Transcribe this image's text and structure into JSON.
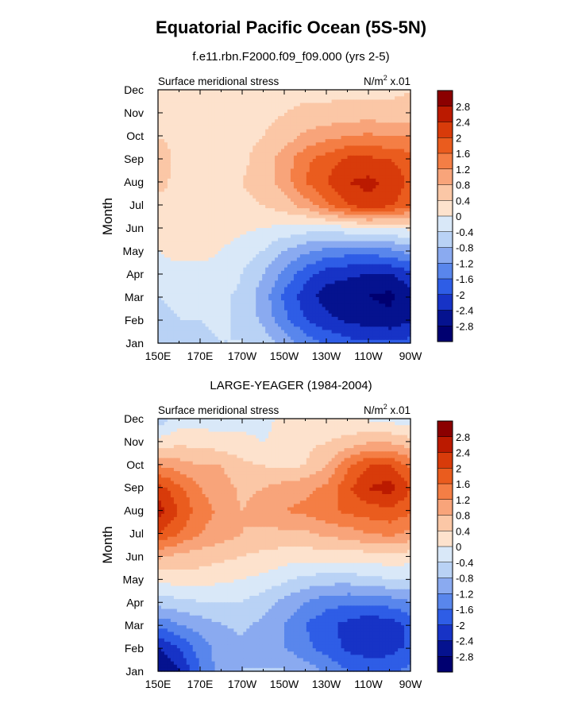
{
  "title": "Equatorial Pacific Ocean (5S-5N)",
  "colorbar": {
    "labels": [
      "2.8",
      "2.4",
      "2",
      "1.6",
      "1.2",
      "0.8",
      "0.4",
      "0",
      "-0.4",
      "-0.8",
      "-1.2",
      "-1.6",
      "-2",
      "-2.4",
      "-2.8"
    ],
    "colors": [
      "#8b0000",
      "#bb1a00",
      "#d83b0a",
      "#ea5c1e",
      "#f47e45",
      "#f8a47a",
      "#fbc7a6",
      "#fde2cd",
      "#d9e8f8",
      "#b9d2f5",
      "#8aaaf0",
      "#5986ec",
      "#2e5de6",
      "#1733c6",
      "#05128f",
      "#000070"
    ]
  },
  "chart_data": [
    {
      "type": "heatmap",
      "subtitle": "f.e11.rbn.F2000.f09_f09.000 (yrs 2-5)",
      "left_label": "Surface meridional stress",
      "right_label": "N/m² x.01",
      "ylabel": "Month",
      "x_ticks": [
        "150E",
        "170E",
        "170W",
        "150W",
        "130W",
        "110W",
        "90W"
      ],
      "x_tick_lon": [
        150,
        170,
        190,
        210,
        230,
        250,
        270
      ],
      "y_ticks": [
        "Jan",
        "Feb",
        "Mar",
        "Apr",
        "May",
        "Jun",
        "Jul",
        "Aug",
        "Sep",
        "Oct",
        "Nov",
        "Dec"
      ],
      "xlim": [
        150,
        270
      ],
      "grid": false,
      "x": [
        150,
        160,
        170,
        180,
        190,
        200,
        210,
        220,
        230,
        240,
        250,
        260,
        270
      ],
      "z": [
        [
          -0.6,
          -0.6,
          -0.5,
          -0.4,
          -0.4,
          -0.6,
          -1.0,
          -1.4,
          -1.7,
          -1.9,
          -2.0,
          -2.0,
          -1.9
        ],
        [
          -0.5,
          -0.4,
          -0.4,
          -0.3,
          -0.5,
          -0.9,
          -1.5,
          -2.0,
          -2.3,
          -2.5,
          -2.6,
          -2.7,
          -2.5
        ],
        [
          -0.4,
          -0.3,
          -0.3,
          -0.3,
          -0.5,
          -1.0,
          -1.7,
          -2.2,
          -2.6,
          -2.7,
          -2.8,
          -2.9,
          -2.6
        ],
        [
          -0.1,
          -0.1,
          -0.1,
          -0.1,
          -0.4,
          -0.8,
          -1.3,
          -1.8,
          -2.2,
          -2.3,
          -2.4,
          -2.4,
          -2.1
        ],
        [
          0.0,
          0.1,
          0.1,
          0.0,
          -0.2,
          -0.4,
          -0.8,
          -1.1,
          -1.3,
          -1.4,
          -1.4,
          -1.3,
          -1.0
        ],
        [
          0.2,
          0.2,
          0.2,
          0.2,
          0.1,
          0.0,
          -0.1,
          -0.2,
          -0.2,
          -0.1,
          0.0,
          0.0,
          0.1
        ],
        [
          0.3,
          0.3,
          0.3,
          0.3,
          0.3,
          0.4,
          0.6,
          1.0,
          1.5,
          2.0,
          2.3,
          2.1,
          1.7
        ],
        [
          0.5,
          0.3,
          0.3,
          0.3,
          0.4,
          0.6,
          1.0,
          1.6,
          2.0,
          2.4,
          2.5,
          2.3,
          1.9
        ],
        [
          0.6,
          0.3,
          0.3,
          0.3,
          0.3,
          0.6,
          1.0,
          1.5,
          1.8,
          2.1,
          2.1,
          2.0,
          1.8
        ],
        [
          0.4,
          0.3,
          0.3,
          0.3,
          0.3,
          0.4,
          0.6,
          0.9,
          1.1,
          1.2,
          1.3,
          1.2,
          1.2
        ],
        [
          0.3,
          0.2,
          0.2,
          0.2,
          0.2,
          0.3,
          0.4,
          0.5,
          0.5,
          0.6,
          0.6,
          0.6,
          0.6
        ],
        [
          0.3,
          0.2,
          0.1,
          0.1,
          0.2,
          0.2,
          0.3,
          0.3,
          0.3,
          0.3,
          0.3,
          0.3,
          0.4
        ]
      ]
    },
    {
      "type": "heatmap",
      "subtitle": "LARGE-YEAGER (1984-2004)",
      "left_label": "Surface meridional stress",
      "right_label": "N/m² x.01",
      "ylabel": "Month",
      "x_ticks": [
        "150E",
        "170E",
        "170W",
        "150W",
        "130W",
        "110W",
        "90W"
      ],
      "x_tick_lon": [
        150,
        170,
        190,
        210,
        230,
        250,
        270
      ],
      "y_ticks": [
        "Jan",
        "Feb",
        "Mar",
        "Apr",
        "May",
        "Jun",
        "Jul",
        "Aug",
        "Sep",
        "Oct",
        "Nov",
        "Dec"
      ],
      "xlim": [
        150,
        270
      ],
      "grid": false,
      "x": [
        150,
        160,
        170,
        180,
        190,
        200,
        210,
        220,
        230,
        240,
        250,
        260,
        270
      ],
      "z": [
        [
          -2.8,
          -2.4,
          -1.6,
          -1.0,
          -0.8,
          -0.8,
          -0.8,
          -1.0,
          -1.3,
          -1.6,
          -1.7,
          -1.7,
          -1.5
        ],
        [
          -2.4,
          -2.0,
          -1.4,
          -1.0,
          -0.9,
          -1.0,
          -1.2,
          -1.5,
          -1.8,
          -2.1,
          -2.3,
          -2.2,
          -1.9
        ],
        [
          -1.5,
          -1.2,
          -1.0,
          -0.8,
          -0.7,
          -0.9,
          -1.2,
          -1.6,
          -1.9,
          -2.1,
          -2.3,
          -2.2,
          -1.9
        ],
        [
          -0.6,
          -0.5,
          -0.4,
          -0.4,
          -0.4,
          -0.6,
          -0.9,
          -1.2,
          -1.4,
          -1.5,
          -1.5,
          -1.4,
          -1.2
        ],
        [
          0.1,
          0.2,
          0.2,
          0.1,
          0.0,
          -0.1,
          -0.3,
          -0.5,
          -0.6,
          -0.6,
          -0.5,
          -0.4,
          -0.4
        ],
        [
          0.9,
          0.7,
          0.6,
          0.5,
          0.4,
          0.3,
          0.2,
          0.2,
          0.2,
          0.2,
          0.2,
          0.3,
          0.2
        ],
        [
          2.0,
          1.6,
          1.2,
          1.0,
          0.8,
          0.7,
          0.7,
          0.7,
          0.9,
          1.0,
          1.2,
          1.3,
          1.1
        ],
        [
          2.6,
          2.0,
          1.4,
          1.1,
          0.8,
          1.0,
          1.2,
          1.3,
          1.5,
          1.7,
          1.8,
          1.9,
          1.7
        ],
        [
          2.2,
          1.7,
          1.2,
          1.0,
          0.7,
          0.8,
          1.0,
          1.1,
          1.3,
          1.9,
          2.4,
          2.6,
          2.0
        ],
        [
          1.2,
          1.0,
          0.8,
          0.8,
          0.5,
          0.4,
          0.3,
          0.4,
          0.8,
          1.5,
          2.0,
          2.0,
          1.5
        ],
        [
          0.2,
          0.3,
          0.3,
          0.2,
          0.1,
          0.0,
          0.1,
          0.3,
          0.4,
          0.6,
          0.8,
          0.8,
          0.6
        ],
        [
          -0.6,
          -0.2,
          -0.2,
          -0.2,
          -0.1,
          -0.1,
          0.1,
          0.2,
          0.1,
          0.0,
          0.0,
          -0.1,
          -0.2
        ]
      ]
    }
  ]
}
